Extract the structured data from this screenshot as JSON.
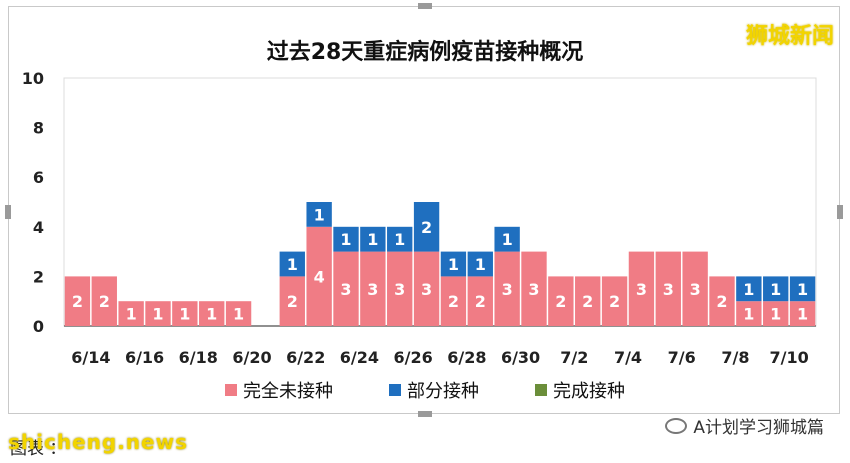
{
  "brand": "狮城新闻",
  "source_label": "图表 ：",
  "source_watermark": "shicheng.news",
  "watermark_account": "A计划学习狮城篇",
  "colors": {
    "unvaccinated": "#f07c85",
    "partial": "#1f6fbf",
    "full": "#6b8e3a",
    "grid": "#dcdcdc",
    "axis": "#222222"
  },
  "chart_data": {
    "type": "bar",
    "stacked": true,
    "title": "过去28天重症病例疫苗接种概况",
    "xlabel": "",
    "ylabel": "",
    "ylim": [
      0,
      10
    ],
    "yticks": [
      0,
      2,
      4,
      6,
      8,
      10
    ],
    "grid": false,
    "legend_position": "bottom",
    "categories": [
      "6/14",
      "6/15",
      "6/16",
      "6/17",
      "6/18",
      "6/19",
      "6/20",
      "6/21",
      "6/22",
      "6/23",
      "6/24",
      "6/25",
      "6/26",
      "6/27",
      "6/28",
      "6/29",
      "6/30",
      "7/1",
      "7/2",
      "7/3",
      "7/4",
      "7/5",
      "7/6",
      "7/7",
      "7/8",
      "7/9",
      "7/10",
      "7/11"
    ],
    "x_tick_labels": [
      "6/14",
      "",
      "6/16",
      "",
      "6/18",
      "",
      "6/20",
      "",
      "6/22",
      "",
      "6/24",
      "",
      "6/26",
      "",
      "6/28",
      "",
      "6/30",
      "",
      "7/2",
      "",
      "7/4",
      "",
      "7/6",
      "",
      "7/8",
      "",
      "7/10",
      ""
    ],
    "series": [
      {
        "name": "完全未接种",
        "color": "#f07c85",
        "values": [
          2,
          2,
          1,
          1,
          1,
          1,
          1,
          0,
          2,
          4,
          3,
          3,
          3,
          3,
          2,
          2,
          3,
          3,
          2,
          2,
          2,
          3,
          3,
          3,
          2,
          1,
          1,
          1
        ]
      },
      {
        "name": "部分接种",
        "color": "#1f6fbf",
        "values": [
          0,
          0,
          0,
          0,
          0,
          0,
          0,
          0,
          1,
          1,
          1,
          1,
          1,
          2,
          1,
          1,
          1,
          0,
          0,
          0,
          0,
          0,
          0,
          0,
          0,
          1,
          1,
          1
        ]
      },
      {
        "name": "完成接种",
        "color": "#6b8e3a",
        "values": [
          0,
          0,
          0,
          0,
          0,
          0,
          0,
          0,
          0,
          0,
          0,
          0,
          0,
          0,
          0,
          0,
          0,
          0,
          0,
          0,
          0,
          0,
          0,
          0,
          0,
          0,
          0,
          0
        ]
      }
    ]
  }
}
